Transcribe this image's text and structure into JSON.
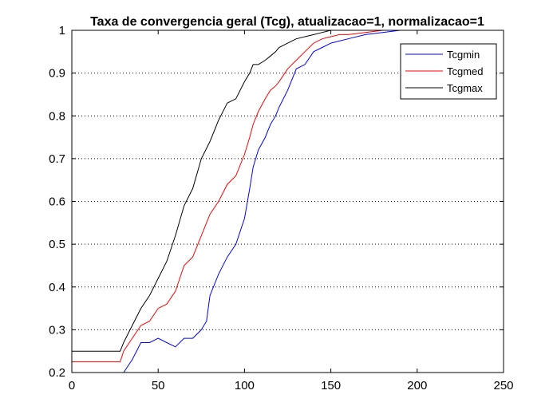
{
  "chart_data": {
    "type": "line",
    "title": "Taxa de convergencia geral (Tcg), atualizacao=1, normalizacao=1",
    "xlabel": "",
    "ylabel": "",
    "xlim": [
      0,
      250
    ],
    "ylim": [
      0.2,
      1
    ],
    "xticks": [
      0,
      50,
      100,
      150,
      200,
      250
    ],
    "yticks": [
      0.2,
      0.3,
      0.4,
      0.5,
      0.6,
      0.7,
      0.8,
      0.9,
      1
    ],
    "x_tick_labels": [
      "0",
      "50",
      "100",
      "150",
      "200",
      "250"
    ],
    "y_tick_labels": [
      "0.2",
      "0.3",
      "0.4",
      "0.5",
      "0.6",
      "0.7",
      "0.8",
      "0.9",
      "1"
    ],
    "y_grid": true,
    "x_grid": false,
    "legend_position": "top-right",
    "series": [
      {
        "name": "Tcgmin",
        "color": "#0000ff",
        "points": [
          [
            0,
            0.17
          ],
          [
            28,
            0.17
          ],
          [
            30,
            0.2
          ],
          [
            35,
            0.23
          ],
          [
            40,
            0.27
          ],
          [
            45,
            0.27
          ],
          [
            50,
            0.28
          ],
          [
            55,
            0.27
          ],
          [
            60,
            0.26
          ],
          [
            65,
            0.28
          ],
          [
            70,
            0.28
          ],
          [
            75,
            0.3
          ],
          [
            78,
            0.32
          ],
          [
            80,
            0.38
          ],
          [
            85,
            0.43
          ],
          [
            90,
            0.47
          ],
          [
            95,
            0.5
          ],
          [
            100,
            0.56
          ],
          [
            103,
            0.63
          ],
          [
            105,
            0.68
          ],
          [
            108,
            0.72
          ],
          [
            112,
            0.75
          ],
          [
            115,
            0.78
          ],
          [
            118,
            0.8
          ],
          [
            120,
            0.82
          ],
          [
            125,
            0.86
          ],
          [
            130,
            0.91
          ],
          [
            135,
            0.92
          ],
          [
            140,
            0.95
          ],
          [
            145,
            0.96
          ],
          [
            150,
            0.97
          ],
          [
            155,
            0.975
          ],
          [
            160,
            0.98
          ],
          [
            170,
            0.99
          ],
          [
            180,
            0.995
          ],
          [
            190,
            1.0
          ],
          [
            200,
            1.0
          ],
          [
            208,
            1.0
          ]
        ]
      },
      {
        "name": "Tcgmed",
        "color": "#ff0000",
        "points": [
          [
            0,
            0.225
          ],
          [
            28,
            0.225
          ],
          [
            30,
            0.25
          ],
          [
            35,
            0.28
          ],
          [
            40,
            0.31
          ],
          [
            45,
            0.32
          ],
          [
            50,
            0.35
          ],
          [
            55,
            0.36
          ],
          [
            60,
            0.39
          ],
          [
            65,
            0.45
          ],
          [
            70,
            0.47
          ],
          [
            75,
            0.52
          ],
          [
            80,
            0.57
          ],
          [
            85,
            0.6
          ],
          [
            90,
            0.64
          ],
          [
            95,
            0.66
          ],
          [
            100,
            0.71
          ],
          [
            103,
            0.75
          ],
          [
            105,
            0.78
          ],
          [
            108,
            0.81
          ],
          [
            112,
            0.84
          ],
          [
            115,
            0.86
          ],
          [
            118,
            0.87
          ],
          [
            120,
            0.88
          ],
          [
            125,
            0.91
          ],
          [
            130,
            0.93
          ],
          [
            135,
            0.95
          ],
          [
            140,
            0.97
          ],
          [
            145,
            0.98
          ],
          [
            150,
            0.985
          ],
          [
            155,
            0.99
          ],
          [
            160,
            0.99
          ],
          [
            170,
            0.995
          ],
          [
            180,
            1.0
          ],
          [
            190,
            1.0
          ],
          [
            200,
            1.0
          ]
        ]
      },
      {
        "name": "Tcgmax",
        "color": "#000000",
        "points": [
          [
            0,
            0.25
          ],
          [
            28,
            0.25
          ],
          [
            30,
            0.27
          ],
          [
            35,
            0.31
          ],
          [
            40,
            0.35
          ],
          [
            45,
            0.38
          ],
          [
            50,
            0.42
          ],
          [
            55,
            0.46
          ],
          [
            60,
            0.52
          ],
          [
            65,
            0.59
          ],
          [
            70,
            0.63
          ],
          [
            75,
            0.7
          ],
          [
            80,
            0.74
          ],
          [
            85,
            0.79
          ],
          [
            90,
            0.83
          ],
          [
            95,
            0.84
          ],
          [
            100,
            0.88
          ],
          [
            103,
            0.9
          ],
          [
            105,
            0.92
          ],
          [
            108,
            0.92
          ],
          [
            112,
            0.93
          ],
          [
            115,
            0.94
          ],
          [
            118,
            0.95
          ],
          [
            120,
            0.96
          ],
          [
            125,
            0.97
          ],
          [
            130,
            0.98
          ],
          [
            135,
            0.985
          ],
          [
            140,
            0.99
          ],
          [
            145,
            0.995
          ],
          [
            150,
            1.0
          ],
          [
            160,
            1.0
          ],
          [
            170,
            1.0
          ],
          [
            180,
            1.0
          ],
          [
            190,
            1.0
          ],
          [
            200,
            1.0
          ]
        ]
      }
    ]
  }
}
